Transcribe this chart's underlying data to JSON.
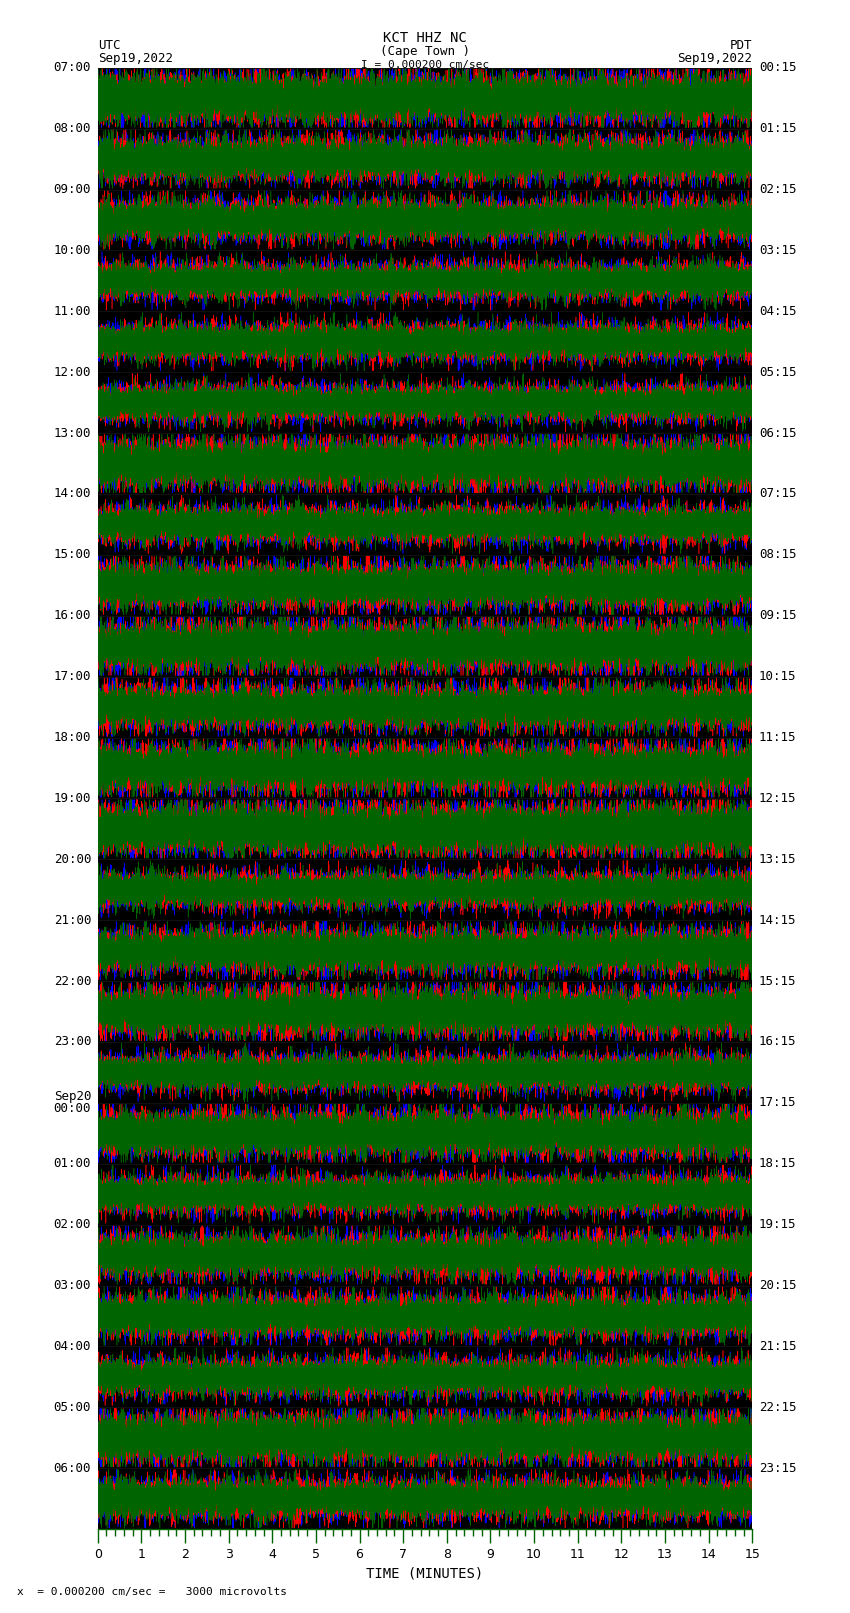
{
  "title_line1": "KCT HHZ NC",
  "title_line2": "(Cape Town )",
  "title_line3": "I = 0.000200 cm/sec",
  "label_utc": "UTC",
  "label_utc_date": "Sep19,2022",
  "label_pdt": "PDT",
  "label_pdt_date": "Sep19,2022",
  "xlabel": "TIME (MINUTES)",
  "scale_label": "x  = 0.000200 cm/sec =   3000 microvolts",
  "left_times": [
    "07:00",
    "08:00",
    "09:00",
    "10:00",
    "11:00",
    "12:00",
    "13:00",
    "14:00",
    "15:00",
    "16:00",
    "17:00",
    "18:00",
    "19:00",
    "20:00",
    "21:00",
    "22:00",
    "23:00",
    "Sep20\n00:00",
    "01:00",
    "02:00",
    "03:00",
    "04:00",
    "05:00",
    "06:00"
  ],
  "right_times": [
    "00:15",
    "01:15",
    "02:15",
    "03:15",
    "04:15",
    "05:15",
    "06:15",
    "07:15",
    "08:15",
    "09:15",
    "10:15",
    "11:15",
    "12:15",
    "13:15",
    "14:15",
    "15:15",
    "16:15",
    "17:15",
    "18:15",
    "19:15",
    "20:15",
    "21:15",
    "22:15",
    "23:15"
  ],
  "n_rows": 24,
  "minutes_per_row": 15,
  "bg_color": "#ffffff",
  "trace_colors": [
    "#0000ff",
    "#ff0000",
    "#006400"
  ],
  "plot_bg": "#000000",
  "font_family": "monospace",
  "font_size": 9,
  "row_amplitude": 0.48,
  "n_pts": 18000
}
